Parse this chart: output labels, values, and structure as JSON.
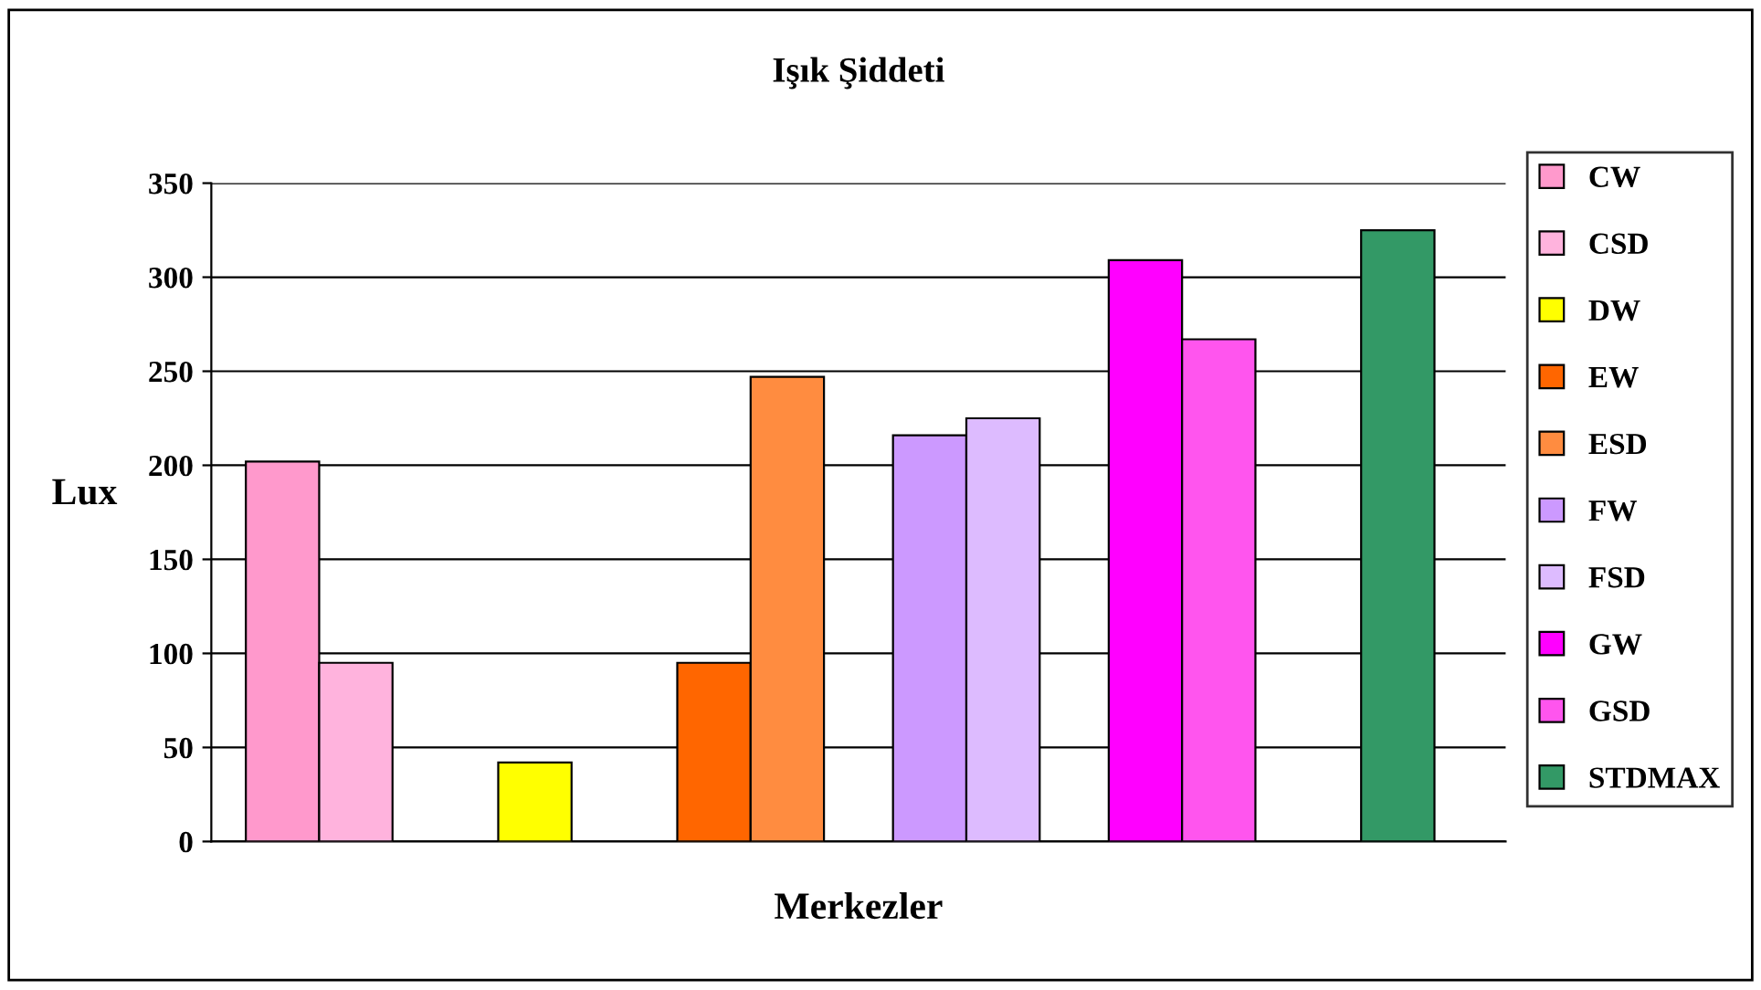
{
  "chart_data": {
    "type": "bar",
    "title": "Işık Şiddeti",
    "xlabel": "Merkezler",
    "ylabel": "Lux",
    "categories": [
      null,
      null,
      null,
      null,
      null,
      null
    ],
    "series": [
      {
        "name": "CW",
        "color": "#ff99cc",
        "values": [
          202,
          null,
          null,
          null,
          null,
          null
        ]
      },
      {
        "name": "CSD",
        "color": "#ffb3dd",
        "values": [
          95,
          null,
          null,
          null,
          null,
          null
        ]
      },
      {
        "name": "DW",
        "color": "#ffff00",
        "values": [
          null,
          42,
          null,
          null,
          null,
          null
        ]
      },
      {
        "name": "EW",
        "color": "#ff6600",
        "values": [
          null,
          null,
          95,
          null,
          null,
          null
        ]
      },
      {
        "name": "ESD",
        "color": "#ff8c40",
        "values": [
          null,
          null,
          247,
          null,
          null,
          null
        ]
      },
      {
        "name": "FW",
        "color": "#cc99ff",
        "values": [
          null,
          null,
          null,
          216,
          null,
          null
        ]
      },
      {
        "name": "FSD",
        "color": "#ddbbff",
        "values": [
          null,
          null,
          null,
          225,
          null,
          null
        ]
      },
      {
        "name": "GW",
        "color": "#ff00ff",
        "values": [
          null,
          null,
          null,
          null,
          309,
          null
        ]
      },
      {
        "name": "GSD",
        "color": "#ff55ee",
        "values": [
          null,
          null,
          null,
          null,
          267,
          null
        ]
      },
      {
        "name": "STDMAX",
        "color": "#339966",
        "values": [
          null,
          null,
          null,
          null,
          null,
          325
        ]
      }
    ],
    "ylim": [
      0,
      350
    ],
    "yticks": [
      0,
      50,
      100,
      150,
      200,
      250,
      300,
      350
    ],
    "grid": "y",
    "legend": "right",
    "tick_labels": "y"
  }
}
